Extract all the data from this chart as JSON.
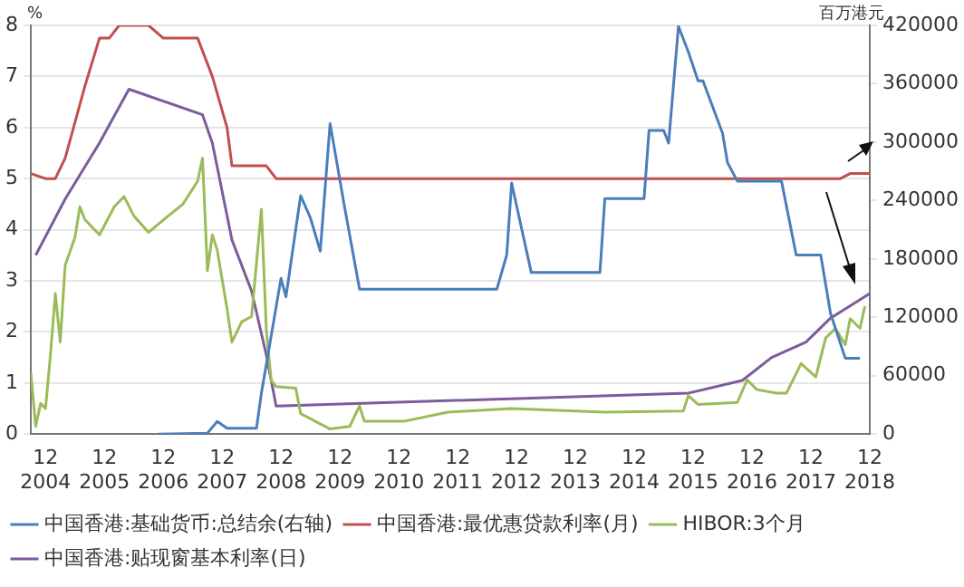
{
  "chart_data": {
    "type": "line",
    "ylabel": "%",
    "y2label": "百万港元",
    "xlim": [
      "2004-09",
      "2018-12"
    ],
    "xticks": [
      {
        "value": "2004-12",
        "label": "12\n2004"
      },
      {
        "value": "2005-12",
        "label": "12\n2005"
      },
      {
        "value": "2006-12",
        "label": "12\n2006"
      },
      {
        "value": "2007-12",
        "label": "12\n2007"
      },
      {
        "value": "2008-12",
        "label": "12\n2008"
      },
      {
        "value": "2009-12",
        "label": "12\n2009"
      },
      {
        "value": "2010-12",
        "label": "12\n2010"
      },
      {
        "value": "2011-12",
        "label": "12\n2011"
      },
      {
        "value": "2012-12",
        "label": "12\n2012"
      },
      {
        "value": "2013-12",
        "label": "12\n2013"
      },
      {
        "value": "2014-12",
        "label": "12\n2014"
      },
      {
        "value": "2015-12",
        "label": "12\n2015"
      },
      {
        "value": "2016-12",
        "label": "12\n2016"
      },
      {
        "value": "2017-12",
        "label": "12\n2017"
      },
      {
        "value": "2018-12",
        "label": "12\n2018"
      }
    ],
    "ylim": [
      0,
      8
    ],
    "yticks": [
      0,
      1,
      2,
      3,
      4,
      5,
      6,
      7,
      8
    ],
    "y2lim": [
      0,
      420000
    ],
    "y2ticks": [
      0,
      60000,
      120000,
      180000,
      240000,
      300000,
      360000,
      420000
    ],
    "grid": "y",
    "legend": "bottom",
    "marker": "none",
    "line_style": "solid",
    "series": [
      {
        "name": "中国香港:基础货币:总结余(右轴)",
        "color": "#4a7ebb",
        "axis": "y2",
        "x": [
          "2006-11",
          "2007-09",
          "2007-11",
          "2008-01",
          "2008-07",
          "2008-08",
          "2008-12",
          "2009-01",
          "2009-04",
          "2009-06",
          "2009-08",
          "2009-10",
          "2010-01",
          "2010-04",
          "2012-08",
          "2012-10",
          "2012-11",
          "2013-03",
          "2014-05",
          "2014-06",
          "2015-02",
          "2015-03",
          "2015-06",
          "2015-07",
          "2015-09",
          "2015-11",
          "2016-01",
          "2016-02",
          "2016-06",
          "2016-07",
          "2016-09",
          "2017-06",
          "2017-09",
          "2018-02",
          "2018-04",
          "2018-07",
          "2018-10"
        ],
        "values": [
          0,
          1000,
          13000,
          6000,
          6000,
          42000,
          160000,
          141000,
          245000,
          222000,
          188000,
          319000,
          232000,
          149000,
          149000,
          184000,
          258000,
          166000,
          166000,
          242000,
          242000,
          312000,
          312000,
          299000,
          419000,
          393000,
          363000,
          363000,
          309000,
          279000,
          260000,
          260000,
          184000,
          184000,
          124000,
          78000,
          78000
        ]
      },
      {
        "name": "中国香港:最优惠贷款利率(月)",
        "color": "#c0504d",
        "x": [
          "2004-09",
          "2004-12",
          "2005-02",
          "2005-04",
          "2005-08",
          "2005-11",
          "2006-01",
          "2006-03",
          "2006-09",
          "2006-12",
          "2007-07",
          "2007-10",
          "2008-01",
          "2008-02",
          "2008-09",
          "2008-11",
          "2018-06",
          "2018-08",
          "2018-12"
        ],
        "values": [
          5.1,
          5.0,
          5.0,
          5.4,
          6.8,
          7.75,
          7.75,
          8.0,
          8.0,
          7.75,
          7.75,
          7.0,
          6.0,
          5.25,
          5.25,
          5.0,
          5.0,
          5.1,
          5.1
        ]
      },
      {
        "name": "HIBOR:3个月",
        "color": "#9bbb59",
        "x": [
          "2004-09",
          "2004-10",
          "2004-11",
          "2004-12",
          "2005-01",
          "2005-02",
          "2005-03",
          "2005-04",
          "2005-06",
          "2005-07",
          "2005-08",
          "2005-11",
          "2006-02",
          "2006-04",
          "2006-06",
          "2006-09",
          "2007-01",
          "2007-04",
          "2007-07",
          "2007-08",
          "2007-09",
          "2007-10",
          "2007-11",
          "2008-01",
          "2008-02",
          "2008-04",
          "2008-06",
          "2008-08",
          "2008-09",
          "2008-10",
          "2008-11",
          "2009-03",
          "2009-04",
          "2009-07",
          "2009-10",
          "2010-02",
          "2010-04",
          "2010-05",
          "2011-01",
          "2011-10",
          "2012-11",
          "2014-06",
          "2015-10",
          "2015-11",
          "2016-01",
          "2016-09",
          "2016-11",
          "2017-01",
          "2017-05",
          "2017-07",
          "2017-10",
          "2018-01",
          "2018-03",
          "2018-05",
          "2018-07",
          "2018-08",
          "2018-10",
          "2018-11"
        ],
        "values": [
          1.2,
          0.15,
          0.6,
          0.5,
          1.55,
          2.75,
          1.8,
          3.3,
          3.85,
          4.45,
          4.2,
          3.9,
          4.45,
          4.65,
          4.27,
          3.95,
          4.27,
          4.5,
          4.95,
          5.4,
          3.2,
          3.9,
          3.6,
          2.45,
          1.8,
          2.2,
          2.3,
          4.4,
          2.05,
          1.05,
          0.93,
          0.9,
          0.4,
          0.25,
          0.1,
          0.15,
          0.55,
          0.25,
          0.25,
          0.43,
          0.5,
          0.43,
          0.45,
          0.75,
          0.58,
          0.62,
          1.06,
          0.87,
          0.8,
          0.8,
          1.38,
          1.12,
          1.88,
          2.07,
          1.75,
          2.26,
          2.07,
          2.5
        ]
      },
      {
        "name": "中国香港:贴现窗基本利率(日)",
        "color": "#7c5c9c",
        "x": [
          "2004-10",
          "2005-04",
          "2005-11",
          "2006-05",
          "2007-08",
          "2007-10",
          "2008-02",
          "2008-06",
          "2008-09",
          "2008-11",
          "2015-11",
          "2016-10",
          "2017-04",
          "2017-11",
          "2018-04",
          "2018-12"
        ],
        "values": [
          3.5,
          4.6,
          5.7,
          6.75,
          6.25,
          5.7,
          3.8,
          2.8,
          1.55,
          0.55,
          0.8,
          1.05,
          1.5,
          1.8,
          2.27,
          2.75
        ]
      }
    ]
  }
}
